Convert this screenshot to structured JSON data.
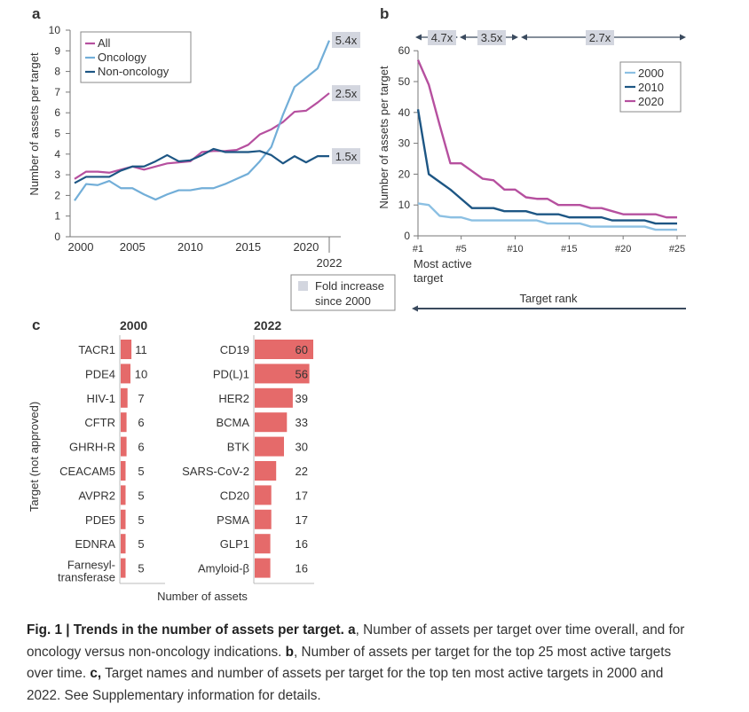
{
  "colors": {
    "all": "#b6509f",
    "oncology": "#72aed8",
    "non_oncology": "#1d5684",
    "y2000": "#8cc0e3",
    "y2010": "#1d5684",
    "y2020": "#b6509f",
    "bar": "#e56a6a",
    "fold_box": "#d3d6df"
  },
  "chart_data": [
    {
      "panel": "a",
      "type": "line",
      "ylabel": "Number of assets per target",
      "xlabel": "",
      "xlim": [
        2000,
        2022
      ],
      "ylim": [
        0,
        10
      ],
      "x_ticks": [
        2000,
        2005,
        2010,
        2015,
        2020
      ],
      "x_extra_tick": "2022",
      "y_ticks": [
        0,
        1,
        2,
        3,
        4,
        5,
        6,
        7,
        8,
        9,
        10
      ],
      "legend_placement": "top-left",
      "x": [
        2000,
        2001,
        2002,
        2003,
        2004,
        2005,
        2006,
        2007,
        2008,
        2009,
        2010,
        2011,
        2012,
        2013,
        2014,
        2015,
        2016,
        2017,
        2018,
        2019,
        2020,
        2021,
        2022
      ],
      "series": [
        {
          "name": "All",
          "color_key": "all",
          "fold": "2.5x",
          "values": [
            2.8,
            3.15,
            3.15,
            3.1,
            3.25,
            3.4,
            3.25,
            3.4,
            3.55,
            3.6,
            3.65,
            4.1,
            4.15,
            4.15,
            4.2,
            4.45,
            4.95,
            5.2,
            5.55,
            6.05,
            6.1,
            6.5,
            6.95
          ]
        },
        {
          "name": "Oncology",
          "color_key": "oncology",
          "fold": "5.4x",
          "values": [
            1.75,
            2.55,
            2.5,
            2.7,
            2.35,
            2.35,
            2.05,
            1.8,
            2.05,
            2.25,
            2.25,
            2.35,
            2.35,
            2.55,
            2.8,
            3.05,
            3.65,
            4.35,
            5.9,
            7.25,
            7.7,
            8.15,
            9.5
          ]
        },
        {
          "name": "Non-oncology",
          "color_key": "non_oncology",
          "fold": "1.5x",
          "values": [
            2.6,
            2.9,
            2.9,
            2.9,
            3.2,
            3.4,
            3.4,
            3.65,
            3.95,
            3.65,
            3.7,
            3.95,
            4.25,
            4.1,
            4.1,
            4.1,
            4.15,
            3.95,
            3.55,
            3.9,
            3.6,
            3.9,
            3.9
          ]
        }
      ],
      "fold_legend": [
        "Fold increase",
        "since 2000"
      ]
    },
    {
      "panel": "b",
      "type": "line",
      "ylabel": "Number of assets per target",
      "xlabel": "Target rank",
      "x_first_label": [
        "Most active",
        "target"
      ],
      "xlim": [
        1,
        25
      ],
      "ylim": [
        0,
        60
      ],
      "x_ticks": [
        "#1",
        "#5",
        "#10",
        "#15",
        "#20",
        "#25"
      ],
      "y_ticks": [
        0,
        10,
        20,
        30,
        40,
        50,
        60
      ],
      "legend_placement": "top-right",
      "x": [
        1,
        2,
        3,
        4,
        5,
        6,
        7,
        8,
        9,
        10,
        11,
        12,
        13,
        14,
        15,
        16,
        17,
        18,
        19,
        20,
        21,
        22,
        23,
        24,
        25
      ],
      "series": [
        {
          "name": "2000",
          "color_key": "y2000",
          "values": [
            10.5,
            10,
            6.5,
            6,
            6,
            5,
            5,
            5,
            5,
            5,
            5,
            5,
            4,
            4,
            4,
            4,
            3,
            3,
            3,
            3,
            3,
            3,
            2,
            2,
            2
          ]
        },
        {
          "name": "2010",
          "color_key": "y2010",
          "values": [
            41,
            20,
            17.5,
            15,
            12,
            9,
            9,
            9,
            8,
            8,
            8,
            7,
            7,
            7,
            6,
            6,
            6,
            6,
            5,
            5,
            5,
            5,
            4,
            4,
            4
          ]
        },
        {
          "name": "2020",
          "color_key": "y2020",
          "values": [
            57,
            49,
            36,
            23.5,
            23.5,
            21,
            18.5,
            18,
            15,
            15,
            12.5,
            12,
            12,
            10,
            10,
            10,
            9,
            9,
            8,
            7,
            7,
            7,
            7,
            6,
            6
          ]
        }
      ],
      "fold_ranges": [
        {
          "label": "4.7x",
          "from": "#1",
          "to": "#5"
        },
        {
          "label": "3.5x",
          "from": "#5",
          "to": "#10"
        },
        {
          "label": "2.7x",
          "from": "#10",
          "to": "#25"
        }
      ]
    },
    {
      "panel": "c",
      "type": "bar",
      "orientation": "horizontal",
      "ylabel": "Target (not approved)",
      "xlabel": "Number of assets",
      "groups": [
        {
          "name": "2000",
          "categories": [
            "TACR1",
            "PDE4",
            "HIV-1",
            "CFTR",
            "GHRH-R",
            "CEACAM5",
            "AVPR2",
            "PDE5",
            "EDNRA",
            "Farnesyl-\ntransferase"
          ],
          "values": [
            11,
            10,
            7,
            6,
            6,
            5,
            5,
            5,
            5,
            5
          ]
        },
        {
          "name": "2022",
          "categories": [
            "CD19",
            "PD(L)1",
            "HER2",
            "BCMA",
            "BTK",
            "SARS-CoV-2",
            "CD20",
            "PSMA",
            "GLP1",
            "Amyloid-β"
          ],
          "values": [
            60,
            56,
            39,
            33,
            30,
            22,
            17,
            17,
            16,
            16
          ]
        }
      ]
    }
  ],
  "caption": [
    {
      "text": "Fig. 1 | Trends in the number of assets per target.",
      "bold": true
    },
    {
      "text": " ",
      "bold": false
    },
    {
      "text": "a",
      "bold": true
    },
    {
      "text": ", Number of assets per target over time overall, and for oncology versus non-oncology indications. ",
      "bold": false
    },
    {
      "text": "b",
      "bold": true
    },
    {
      "text": ", Number of assets per target for the top 25 most active targets over time. ",
      "bold": false
    },
    {
      "text": "c,",
      "bold": true
    },
    {
      "text": " Target names and number of assets per target for the top ten most active targets in 2000 and 2022. See Supplementary information for details.",
      "bold": false
    }
  ]
}
